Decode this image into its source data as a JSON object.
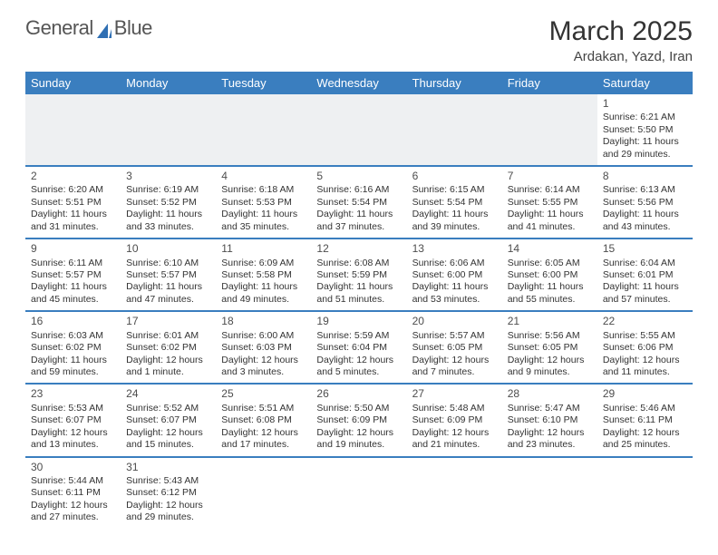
{
  "brand": {
    "part1": "General",
    "part2": "Blue",
    "sail_color": "#2f6fb3"
  },
  "title": "March 2025",
  "location": "Ardakan, Yazd, Iran",
  "header_bg": "#3a7ebf",
  "weekdays": [
    "Sunday",
    "Monday",
    "Tuesday",
    "Wednesday",
    "Thursday",
    "Friday",
    "Saturday"
  ],
  "weeks": [
    [
      null,
      null,
      null,
      null,
      null,
      null,
      {
        "n": "1",
        "sunrise": "Sunrise: 6:21 AM",
        "sunset": "Sunset: 5:50 PM",
        "daylight": "Daylight: 11 hours and 29 minutes."
      }
    ],
    [
      {
        "n": "2",
        "sunrise": "Sunrise: 6:20 AM",
        "sunset": "Sunset: 5:51 PM",
        "daylight": "Daylight: 11 hours and 31 minutes."
      },
      {
        "n": "3",
        "sunrise": "Sunrise: 6:19 AM",
        "sunset": "Sunset: 5:52 PM",
        "daylight": "Daylight: 11 hours and 33 minutes."
      },
      {
        "n": "4",
        "sunrise": "Sunrise: 6:18 AM",
        "sunset": "Sunset: 5:53 PM",
        "daylight": "Daylight: 11 hours and 35 minutes."
      },
      {
        "n": "5",
        "sunrise": "Sunrise: 6:16 AM",
        "sunset": "Sunset: 5:54 PM",
        "daylight": "Daylight: 11 hours and 37 minutes."
      },
      {
        "n": "6",
        "sunrise": "Sunrise: 6:15 AM",
        "sunset": "Sunset: 5:54 PM",
        "daylight": "Daylight: 11 hours and 39 minutes."
      },
      {
        "n": "7",
        "sunrise": "Sunrise: 6:14 AM",
        "sunset": "Sunset: 5:55 PM",
        "daylight": "Daylight: 11 hours and 41 minutes."
      },
      {
        "n": "8",
        "sunrise": "Sunrise: 6:13 AM",
        "sunset": "Sunset: 5:56 PM",
        "daylight": "Daylight: 11 hours and 43 minutes."
      }
    ],
    [
      {
        "n": "9",
        "sunrise": "Sunrise: 6:11 AM",
        "sunset": "Sunset: 5:57 PM",
        "daylight": "Daylight: 11 hours and 45 minutes."
      },
      {
        "n": "10",
        "sunrise": "Sunrise: 6:10 AM",
        "sunset": "Sunset: 5:57 PM",
        "daylight": "Daylight: 11 hours and 47 minutes."
      },
      {
        "n": "11",
        "sunrise": "Sunrise: 6:09 AM",
        "sunset": "Sunset: 5:58 PM",
        "daylight": "Daylight: 11 hours and 49 minutes."
      },
      {
        "n": "12",
        "sunrise": "Sunrise: 6:08 AM",
        "sunset": "Sunset: 5:59 PM",
        "daylight": "Daylight: 11 hours and 51 minutes."
      },
      {
        "n": "13",
        "sunrise": "Sunrise: 6:06 AM",
        "sunset": "Sunset: 6:00 PM",
        "daylight": "Daylight: 11 hours and 53 minutes."
      },
      {
        "n": "14",
        "sunrise": "Sunrise: 6:05 AM",
        "sunset": "Sunset: 6:00 PM",
        "daylight": "Daylight: 11 hours and 55 minutes."
      },
      {
        "n": "15",
        "sunrise": "Sunrise: 6:04 AM",
        "sunset": "Sunset: 6:01 PM",
        "daylight": "Daylight: 11 hours and 57 minutes."
      }
    ],
    [
      {
        "n": "16",
        "sunrise": "Sunrise: 6:03 AM",
        "sunset": "Sunset: 6:02 PM",
        "daylight": "Daylight: 11 hours and 59 minutes."
      },
      {
        "n": "17",
        "sunrise": "Sunrise: 6:01 AM",
        "sunset": "Sunset: 6:02 PM",
        "daylight": "Daylight: 12 hours and 1 minute."
      },
      {
        "n": "18",
        "sunrise": "Sunrise: 6:00 AM",
        "sunset": "Sunset: 6:03 PM",
        "daylight": "Daylight: 12 hours and 3 minutes."
      },
      {
        "n": "19",
        "sunrise": "Sunrise: 5:59 AM",
        "sunset": "Sunset: 6:04 PM",
        "daylight": "Daylight: 12 hours and 5 minutes."
      },
      {
        "n": "20",
        "sunrise": "Sunrise: 5:57 AM",
        "sunset": "Sunset: 6:05 PM",
        "daylight": "Daylight: 12 hours and 7 minutes."
      },
      {
        "n": "21",
        "sunrise": "Sunrise: 5:56 AM",
        "sunset": "Sunset: 6:05 PM",
        "daylight": "Daylight: 12 hours and 9 minutes."
      },
      {
        "n": "22",
        "sunrise": "Sunrise: 5:55 AM",
        "sunset": "Sunset: 6:06 PM",
        "daylight": "Daylight: 12 hours and 11 minutes."
      }
    ],
    [
      {
        "n": "23",
        "sunrise": "Sunrise: 5:53 AM",
        "sunset": "Sunset: 6:07 PM",
        "daylight": "Daylight: 12 hours and 13 minutes."
      },
      {
        "n": "24",
        "sunrise": "Sunrise: 5:52 AM",
        "sunset": "Sunset: 6:07 PM",
        "daylight": "Daylight: 12 hours and 15 minutes."
      },
      {
        "n": "25",
        "sunrise": "Sunrise: 5:51 AM",
        "sunset": "Sunset: 6:08 PM",
        "daylight": "Daylight: 12 hours and 17 minutes."
      },
      {
        "n": "26",
        "sunrise": "Sunrise: 5:50 AM",
        "sunset": "Sunset: 6:09 PM",
        "daylight": "Daylight: 12 hours and 19 minutes."
      },
      {
        "n": "27",
        "sunrise": "Sunrise: 5:48 AM",
        "sunset": "Sunset: 6:09 PM",
        "daylight": "Daylight: 12 hours and 21 minutes."
      },
      {
        "n": "28",
        "sunrise": "Sunrise: 5:47 AM",
        "sunset": "Sunset: 6:10 PM",
        "daylight": "Daylight: 12 hours and 23 minutes."
      },
      {
        "n": "29",
        "sunrise": "Sunrise: 5:46 AM",
        "sunset": "Sunset: 6:11 PM",
        "daylight": "Daylight: 12 hours and 25 minutes."
      }
    ],
    [
      {
        "n": "30",
        "sunrise": "Sunrise: 5:44 AM",
        "sunset": "Sunset: 6:11 PM",
        "daylight": "Daylight: 12 hours and 27 minutes."
      },
      {
        "n": "31",
        "sunrise": "Sunrise: 5:43 AM",
        "sunset": "Sunset: 6:12 PM",
        "daylight": "Daylight: 12 hours and 29 minutes."
      },
      null,
      null,
      null,
      null,
      null
    ]
  ]
}
